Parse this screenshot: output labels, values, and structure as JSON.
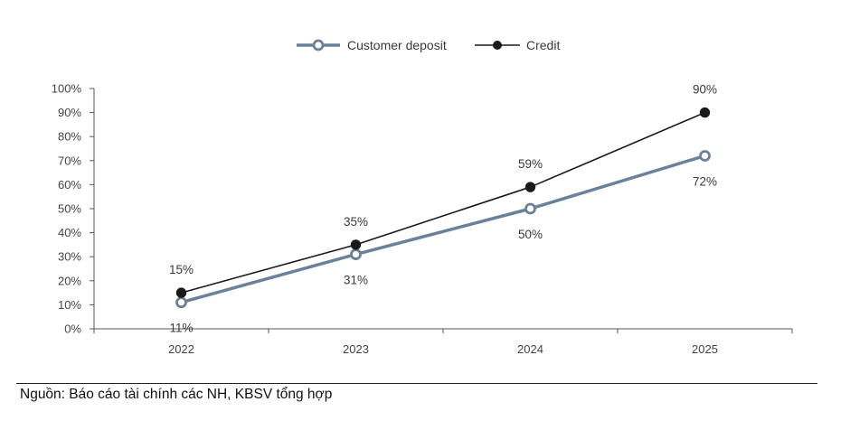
{
  "chart_data": {
    "type": "line",
    "categories": [
      "2022",
      "2023",
      "2024",
      "2025"
    ],
    "ylim": [
      0,
      100
    ],
    "yticks": [
      "0%",
      "10%",
      "20%",
      "30%",
      "40%",
      "50%",
      "60%",
      "70%",
      "80%",
      "90%",
      "100%"
    ],
    "grid": false,
    "legend_position": "top-center",
    "series": [
      {
        "name": "Customer deposit",
        "values": [
          11,
          31,
          50,
          72
        ],
        "labels": [
          "11%",
          "31%",
          "50%",
          "72%"
        ],
        "color": "#6b819a",
        "marker": "hollow-circle",
        "label_position": "below"
      },
      {
        "name": "Credit",
        "values": [
          15,
          35,
          59,
          90
        ],
        "labels": [
          "15%",
          "35%",
          "59%",
          "90%"
        ],
        "color": "#1a1a1a",
        "marker": "filled-circle",
        "label_position": "above"
      }
    ]
  },
  "footer": {
    "source": "Nguồn: Báo cáo tài chính các NH, KBSV tổng hợp"
  }
}
